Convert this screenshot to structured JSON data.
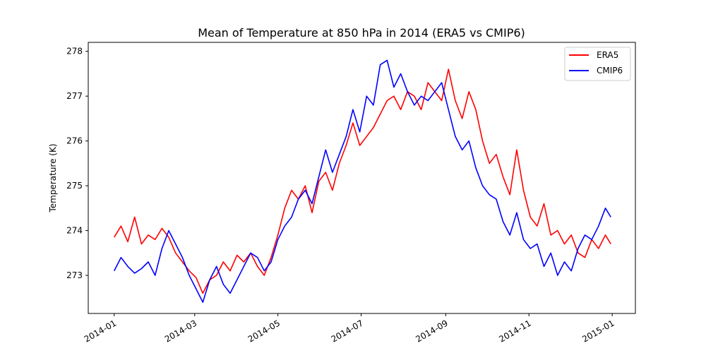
{
  "chart_data": {
    "type": "line",
    "title": "Mean of Temperature at 850 hPa in 2014 (ERA5 vs CMIP6)",
    "xlabel": "",
    "ylabel": "Temperature (K)",
    "xlim": [
      "2013-12-13",
      "2015-01-18"
    ],
    "ylim": [
      272.15,
      278.2
    ],
    "yticks": [
      273,
      274,
      275,
      276,
      277,
      278
    ],
    "xticks": [
      {
        "date": "2014-01-01",
        "label": "2014-01"
      },
      {
        "date": "2014-03-01",
        "label": "2014-03"
      },
      {
        "date": "2014-05-01",
        "label": "2014-05"
      },
      {
        "date": "2014-07-01",
        "label": "2014-07"
      },
      {
        "date": "2014-09-01",
        "label": "2014-09"
      },
      {
        "date": "2014-11-01",
        "label": "2014-11"
      },
      {
        "date": "2015-01-01",
        "label": "2015-01"
      }
    ],
    "grid": false,
    "legend_position": "top-right",
    "series": [
      {
        "name": "ERA5",
        "color": "#ff0000",
        "x": [
          "2014-01-01",
          "2014-01-06",
          "2014-01-11",
          "2014-01-16",
          "2014-01-21",
          "2014-01-26",
          "2014-01-31",
          "2014-02-05",
          "2014-02-10",
          "2014-02-15",
          "2014-02-20",
          "2014-02-25",
          "2014-03-02",
          "2014-03-07",
          "2014-03-12",
          "2014-03-17",
          "2014-03-22",
          "2014-03-27",
          "2014-04-01",
          "2014-04-06",
          "2014-04-11",
          "2014-04-16",
          "2014-04-21",
          "2014-04-26",
          "2014-05-01",
          "2014-05-06",
          "2014-05-11",
          "2014-05-16",
          "2014-05-21",
          "2014-05-26",
          "2014-05-31",
          "2014-06-05",
          "2014-06-10",
          "2014-06-15",
          "2014-06-20",
          "2014-06-25",
          "2014-06-30",
          "2014-07-05",
          "2014-07-10",
          "2014-07-15",
          "2014-07-20",
          "2014-07-25",
          "2014-07-30",
          "2014-08-04",
          "2014-08-09",
          "2014-08-14",
          "2014-08-19",
          "2014-08-24",
          "2014-08-29",
          "2014-09-03",
          "2014-09-08",
          "2014-09-13",
          "2014-09-18",
          "2014-09-23",
          "2014-09-28",
          "2014-10-03",
          "2014-10-08",
          "2014-10-13",
          "2014-10-18",
          "2014-10-23",
          "2014-10-28",
          "2014-11-02",
          "2014-11-07",
          "2014-11-12",
          "2014-11-17",
          "2014-11-22",
          "2014-11-27",
          "2014-12-02",
          "2014-12-07",
          "2014-12-12",
          "2014-12-17",
          "2014-12-22",
          "2014-12-27",
          "2014-12-31"
        ],
        "values": [
          273.85,
          274.1,
          273.75,
          274.3,
          273.7,
          273.9,
          273.8,
          274.05,
          273.85,
          273.5,
          273.3,
          273.1,
          272.95,
          272.6,
          272.9,
          273.0,
          273.3,
          273.1,
          273.45,
          273.3,
          273.5,
          273.2,
          273.0,
          273.4,
          273.9,
          274.5,
          274.9,
          274.7,
          275.0,
          274.4,
          275.1,
          275.3,
          274.9,
          275.5,
          275.9,
          276.4,
          275.9,
          276.1,
          276.3,
          276.6,
          276.9,
          277.0,
          276.7,
          277.1,
          277.0,
          276.7,
          277.3,
          277.1,
          276.9,
          277.6,
          276.9,
          276.5,
          277.1,
          276.7,
          276.0,
          275.5,
          275.7,
          275.2,
          274.8,
          275.8,
          274.9,
          274.3,
          274.1,
          274.6,
          273.9,
          274.0,
          273.7,
          273.9,
          273.5,
          273.4,
          273.8,
          273.6,
          273.9,
          273.7
        ]
      },
      {
        "name": "CMIP6",
        "color": "#0000ff",
        "x": [
          "2014-01-01",
          "2014-01-06",
          "2014-01-11",
          "2014-01-16",
          "2014-01-21",
          "2014-01-26",
          "2014-01-31",
          "2014-02-05",
          "2014-02-10",
          "2014-02-15",
          "2014-02-20",
          "2014-02-25",
          "2014-03-02",
          "2014-03-07",
          "2014-03-12",
          "2014-03-17",
          "2014-03-22",
          "2014-03-27",
          "2014-04-01",
          "2014-04-06",
          "2014-04-11",
          "2014-04-16",
          "2014-04-21",
          "2014-04-26",
          "2014-05-01",
          "2014-05-06",
          "2014-05-11",
          "2014-05-16",
          "2014-05-21",
          "2014-05-26",
          "2014-05-31",
          "2014-06-05",
          "2014-06-10",
          "2014-06-15",
          "2014-06-20",
          "2014-06-25",
          "2014-06-30",
          "2014-07-05",
          "2014-07-10",
          "2014-07-15",
          "2014-07-20",
          "2014-07-25",
          "2014-07-30",
          "2014-08-04",
          "2014-08-09",
          "2014-08-14",
          "2014-08-19",
          "2014-08-24",
          "2014-08-29",
          "2014-09-03",
          "2014-09-08",
          "2014-09-13",
          "2014-09-18",
          "2014-09-23",
          "2014-09-28",
          "2014-10-03",
          "2014-10-08",
          "2014-10-13",
          "2014-10-18",
          "2014-10-23",
          "2014-10-28",
          "2014-11-02",
          "2014-11-07",
          "2014-11-12",
          "2014-11-17",
          "2014-11-22",
          "2014-11-27",
          "2014-12-02",
          "2014-12-07",
          "2014-12-12",
          "2014-12-17",
          "2014-12-22",
          "2014-12-27",
          "2014-12-31"
        ],
        "values": [
          273.1,
          273.4,
          273.2,
          273.05,
          273.15,
          273.3,
          273.0,
          273.6,
          274.0,
          273.7,
          273.4,
          273.0,
          272.7,
          272.4,
          272.9,
          273.2,
          272.8,
          272.6,
          272.9,
          273.2,
          273.5,
          273.4,
          273.1,
          273.3,
          273.8,
          274.1,
          274.3,
          274.7,
          274.9,
          274.6,
          275.2,
          275.8,
          275.3,
          275.7,
          276.1,
          276.7,
          276.2,
          277.0,
          276.8,
          277.7,
          277.8,
          277.2,
          277.5,
          277.1,
          276.8,
          277.0,
          276.9,
          277.1,
          277.3,
          276.7,
          276.1,
          275.8,
          276.0,
          275.4,
          275.0,
          274.8,
          274.7,
          274.2,
          273.9,
          274.4,
          273.8,
          273.6,
          273.7,
          273.2,
          273.5,
          273.0,
          273.3,
          273.1,
          273.6,
          273.9,
          273.8,
          274.1,
          274.5,
          274.3
        ]
      }
    ]
  }
}
